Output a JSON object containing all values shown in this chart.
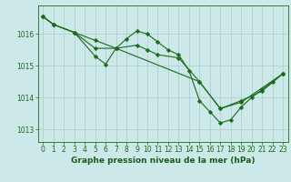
{
  "background_color": "#cce8e8",
  "grid_color": "#aacccc",
  "line_color": "#1a6b1a",
  "marker_color": "#1a6b1a",
  "xlabel": "Graphe pression niveau de la mer (hPa)",
  "xlabel_color": "#1a5c1a",
  "xticks": [
    0,
    1,
    2,
    3,
    4,
    5,
    6,
    7,
    8,
    9,
    10,
    11,
    12,
    13,
    14,
    15,
    16,
    17,
    18,
    19,
    20,
    21,
    22,
    23
  ],
  "yticks": [
    1013,
    1014,
    1015,
    1016
  ],
  "ylim": [
    1012.6,
    1016.9
  ],
  "xlim": [
    -0.5,
    23.5
  ],
  "line1_x": [
    0,
    1,
    3,
    5,
    7,
    9,
    10,
    11,
    13,
    15,
    17,
    19,
    21,
    23
  ],
  "line1_y": [
    1016.55,
    1016.3,
    1016.05,
    1015.55,
    1015.55,
    1015.65,
    1015.5,
    1015.35,
    1015.25,
    1014.5,
    1013.65,
    1013.9,
    1014.2,
    1014.75
  ],
  "line2_x": [
    0,
    1,
    3,
    5,
    6,
    7,
    8,
    9,
    10,
    11,
    12,
    13,
    14,
    15,
    16,
    17,
    18,
    19,
    20,
    21,
    22,
    23
  ],
  "line2_y": [
    1016.55,
    1016.3,
    1016.05,
    1015.3,
    1015.05,
    1015.55,
    1015.85,
    1016.1,
    1016.0,
    1015.75,
    1015.5,
    1015.35,
    1014.85,
    1013.9,
    1013.55,
    1013.2,
    1013.3,
    1013.7,
    1014.0,
    1014.25,
    1014.5,
    1014.75
  ],
  "line3_x": [
    0,
    1,
    3,
    5,
    7,
    15,
    17,
    19,
    23
  ],
  "line3_y": [
    1016.55,
    1016.3,
    1016.05,
    1015.8,
    1015.55,
    1014.5,
    1013.65,
    1013.85,
    1014.75
  ],
  "tick_fontsize": 5.5,
  "xlabel_fontsize": 6.5
}
